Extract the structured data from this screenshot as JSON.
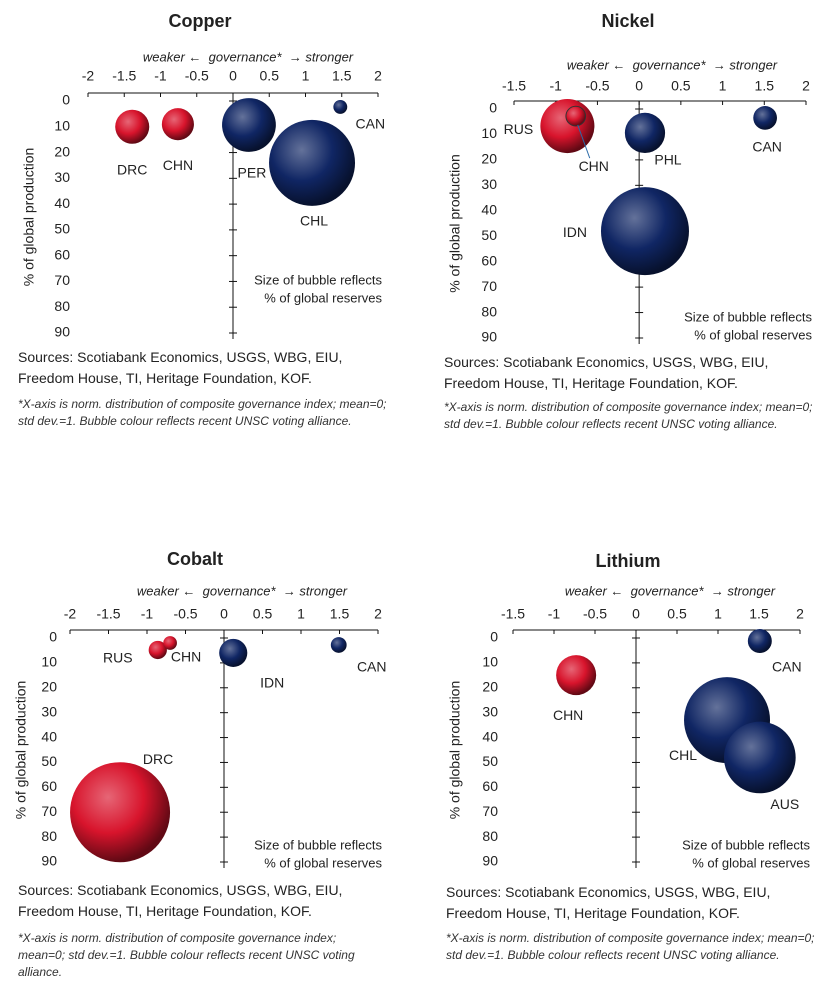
{
  "chart_data": [
    {
      "type": "bubble",
      "title": "Copper",
      "x_label": "weaker ←  governance*  → stronger",
      "y_label": "% of global production",
      "size_note": [
        "Size of bubble reflects",
        "% of global reserves"
      ],
      "sources": "Sources: Scotiabank Economics, USGS, WBG, EIU, Freedom House, TI, Heritage Foundation, KOF.",
      "footnote": "*X-axis is norm. distribution of composite governance index; mean=0; std dev.=1. Bubble colour reflects recent UNSC voting alliance.",
      "xlim": [
        -2,
        2
      ],
      "xticks": [
        -2,
        -1.5,
        -1,
        -0.5,
        0,
        0.5,
        1,
        1.5,
        2
      ],
      "ylim": [
        0,
        90
      ],
      "yticks": [
        0,
        10,
        20,
        30,
        40,
        50,
        60,
        70,
        80,
        90
      ],
      "y_inverted": true,
      "labels": [
        "DRC",
        "CHN",
        "PER",
        "CHL",
        "CAN"
      ],
      "x": [
        -1.39,
        -0.76,
        0.22,
        1.09,
        1.48
      ],
      "y": [
        10,
        9,
        9.3,
        24,
        2.3
      ],
      "sizes": [
        3.6,
        3.2,
        9,
        23,
        0.6
      ],
      "colors": [
        "#d8142c",
        "#d8142c",
        "#102664",
        "#102664",
        "#102664"
      ]
    },
    {
      "type": "bubble",
      "title": "Nickel",
      "x_label": "weaker ←  governance*  → stronger",
      "y_label": "% of global production",
      "size_note": [
        "Size of bubble reflects",
        "% of global reserves"
      ],
      "sources": "Sources: Scotiabank Economics, USGS, WBG, EIU, Freedom House, TI, Heritage Foundation, KOF.",
      "footnote": "*X-axis is norm. distribution of composite governance index; mean=0; std dev.=1. Bubble colour reflects recent UNSC voting alliance.",
      "xlim": [
        -1.5,
        2
      ],
      "xticks": [
        -1.5,
        -1,
        -0.5,
        0,
        0.5,
        1,
        1.5,
        2
      ],
      "ylim": [
        0,
        90
      ],
      "yticks": [
        0,
        10,
        20,
        30,
        40,
        50,
        60,
        70,
        80,
        90
      ],
      "y_inverted": true,
      "labels": [
        "RUS",
        "CHN",
        "PHL",
        "CAN",
        "IDN"
      ],
      "x": [
        -0.86,
        -0.76,
        0.07,
        1.51,
        0.07
      ],
      "y": [
        6.7,
        2.8,
        9.4,
        3.5,
        48
      ],
      "sizes": [
        8.3,
        1.1,
        4.6,
        1.6,
        22
      ],
      "colors": [
        "#d8142c",
        "#d8142c",
        "#102664",
        "#102664",
        "#102664"
      ]
    },
    {
      "type": "bubble",
      "title": "Cobalt",
      "x_label": "weaker ←  governance*  → stronger",
      "y_label": "% of global production",
      "size_note": [
        "Size of bubble reflects",
        "% of global reserves"
      ],
      "sources": "Sources: Scotiabank Economics, USGS, WBG, EIU, Freedom House, TI, Heritage Foundation, KOF.",
      "footnote": "*X-axis is norm. distribution of composite governance index; mean=0; std dev.=1. Bubble colour reflects recent UNSC voting alliance.",
      "xlim": [
        -2,
        2
      ],
      "xticks": [
        -2,
        -1.5,
        -1,
        -0.5,
        0,
        0.5,
        1,
        1.5,
        2
      ],
      "ylim": [
        0,
        90
      ],
      "yticks": [
        0,
        10,
        20,
        30,
        40,
        50,
        60,
        70,
        80,
        90
      ],
      "y_inverted": true,
      "labels": [
        "RUS",
        "CHN",
        "IDN",
        "CAN",
        "DRC"
      ],
      "x": [
        -0.86,
        -0.7,
        0.12,
        1.49,
        -1.35
      ],
      "y": [
        4.8,
        2,
        6,
        2.8,
        70
      ],
      "sizes": [
        1.6,
        0.9,
        3.8,
        1.2,
        48
      ],
      "colors": [
        "#d8142c",
        "#d8142c",
        "#102664",
        "#102664",
        "#d8142c"
      ]
    },
    {
      "type": "bubble",
      "title": "Lithium",
      "x_label": "weaker ←  governance*  → stronger",
      "y_label": "% of global production",
      "size_note": [
        "Size of bubble reflects",
        "% of global reserves"
      ],
      "sources": "Sources: Scotiabank Economics, USGS, WBG, EIU, Freedom House, TI, Heritage Foundation, KOF.",
      "footnote": "*X-axis is norm. distribution of composite governance index; mean=0; std dev.=1. Bubble colour reflects recent UNSC voting alliance.",
      "xlim": [
        -1.5,
        2
      ],
      "xticks": [
        -1.5,
        -1,
        -0.5,
        0,
        0.5,
        1,
        1.5,
        2
      ],
      "ylim": [
        0,
        90
      ],
      "yticks": [
        0,
        10,
        20,
        30,
        40,
        50,
        60,
        70,
        80,
        90
      ],
      "y_inverted": true,
      "labels": [
        "CAN",
        "CHN",
        "CHL",
        "AUS"
      ],
      "x": [
        1.51,
        -0.73,
        1.11,
        1.51
      ],
      "y": [
        1.2,
        14.9,
        33,
        48
      ],
      "sizes": [
        2.8,
        7.8,
        36,
        25
      ],
      "colors": [
        "#102664",
        "#d8142c",
        "#102664",
        "#102664"
      ]
    }
  ]
}
